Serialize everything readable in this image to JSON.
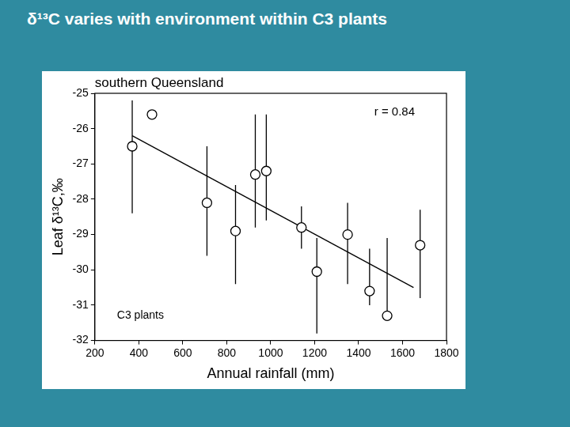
{
  "slide_title": "δ¹³C varies with environment within C3 plants",
  "chart_data": {
    "type": "scatter",
    "title": "southern Queensland",
    "x_label": "Annual rainfall (mm)",
    "y_label": "Leaf δ¹³C,‰",
    "annotations": [
      "r = 0.84",
      "C3 plants"
    ],
    "x": [
      370,
      460,
      710,
      840,
      930,
      980,
      1140,
      1210,
      1350,
      1450,
      1530,
      1680
    ],
    "values": [
      -26.5,
      -25.6,
      -28.1,
      -28.9,
      -27.3,
      -27.2,
      -28.8,
      -30.05,
      -29.0,
      -30.6,
      -31.3,
      -29.3
    ],
    "y_low": [
      -28.4,
      null,
      -29.6,
      -30.4,
      -28.8,
      -28.6,
      -29.4,
      -31.8,
      -30.4,
      -31.0,
      -31.4,
      -30.8
    ],
    "y_high": [
      -25.2,
      null,
      -26.5,
      -27.6,
      -25.6,
      -25.6,
      -28.2,
      -29.1,
      -28.1,
      -29.4,
      -29.1,
      -28.3
    ],
    "fit_line": {
      "x": [
        370,
        1650
      ],
      "y": [
        -26.2,
        -30.5
      ]
    },
    "color": "#000000",
    "marker": "open_circle",
    "line_style": "solid",
    "xlim": [
      200,
      1800
    ],
    "xticks": [
      200,
      400,
      600,
      800,
      1000,
      1200,
      1400,
      1600,
      1800
    ],
    "ylim": [
      -32,
      -25
    ],
    "yticks": [
      -32,
      -31,
      -30,
      -29,
      -28,
      -27,
      -26,
      -25
    ],
    "grid": false
  }
}
